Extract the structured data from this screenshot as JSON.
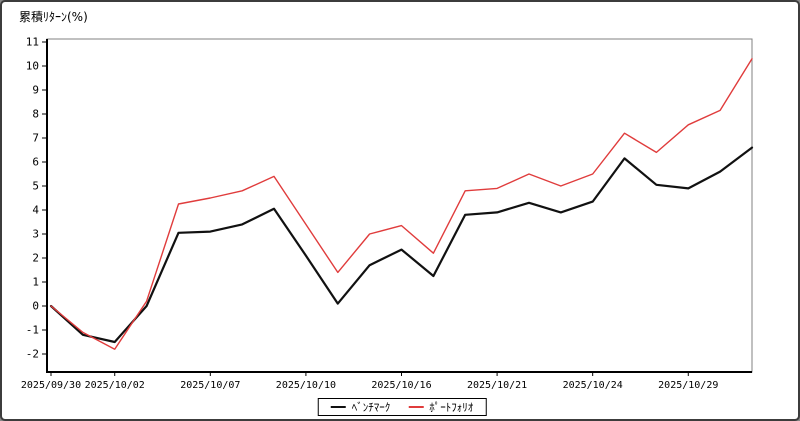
{
  "header": {
    "title": "累積ﾘﾀｰﾝ(%)"
  },
  "legend": {
    "items": [
      {
        "key": "benchmark",
        "label": "ﾍﾞﾝﾁﾏｰｸ",
        "color": "#111111"
      },
      {
        "key": "portfolio",
        "label": "ﾎﾟｰﾄﾌｫﾘｵ",
        "color": "#e03c3c"
      }
    ]
  },
  "colors": {
    "benchmark_line": "#111111",
    "portfolio_line": "#e03c3c",
    "axis": "#000000",
    "plot_border": "#808080",
    "background": "#ffffff"
  },
  "chart_data": {
    "type": "line",
    "title": "累積ﾘﾀｰﾝ(%)",
    "ylabel": "累積ﾘﾀｰﾝ(%)",
    "xlabel": "",
    "grid": false,
    "legend_position": "bottom-center",
    "ylim": [
      -2.75,
      11.2
    ],
    "y_ticks": [
      -2,
      -1,
      0,
      1,
      2,
      3,
      4,
      5,
      6,
      7,
      8,
      9,
      10,
      11
    ],
    "x": [
      "2025/09/30",
      "2025/10/01",
      "2025/10/02",
      "2025/10/03",
      "2025/10/06",
      "2025/10/07",
      "2025/10/08",
      "2025/10/09",
      "2025/10/10",
      "2025/10/14",
      "2025/10/15",
      "2025/10/16",
      "2025/10/17",
      "2025/10/20",
      "2025/10/21",
      "2025/10/22",
      "2025/10/23",
      "2025/10/24",
      "2025/10/27",
      "2025/10/28",
      "2025/10/29",
      "2025/10/30",
      "2025/10/31"
    ],
    "x_tick_labels": [
      {
        "label": "2025/09/30",
        "index": 0
      },
      {
        "label": "2025/10/02",
        "index": 2
      },
      {
        "label": "2025/10/07",
        "index": 5
      },
      {
        "label": "2025/10/10",
        "index": 8
      },
      {
        "label": "2025/10/16",
        "index": 11
      },
      {
        "label": "2025/10/21",
        "index": 14
      },
      {
        "label": "2025/10/24",
        "index": 17
      },
      {
        "label": "2025/10/29",
        "index": 20
      }
    ],
    "series": [
      {
        "name": "benchmark",
        "label": "ﾍﾞﾝﾁﾏｰｸ",
        "color": "#111111",
        "width": 2.2,
        "values": [
          0.0,
          -1.2,
          -1.5,
          0.0,
          3.05,
          3.1,
          3.4,
          4.05,
          2.1,
          0.1,
          1.7,
          2.35,
          1.25,
          3.8,
          3.9,
          4.3,
          3.9,
          4.35,
          6.15,
          5.05,
          4.9,
          5.6,
          6.6
        ]
      },
      {
        "name": "portfolio",
        "label": "ﾎﾟｰﾄﾌｫﾘｵ",
        "color": "#e03c3c",
        "width": 1.4,
        "values": [
          0.0,
          -1.1,
          -1.8,
          0.2,
          4.25,
          4.5,
          4.8,
          5.4,
          3.4,
          1.4,
          3.0,
          3.35,
          2.2,
          4.8,
          4.9,
          5.5,
          5.0,
          5.5,
          7.2,
          6.4,
          7.55,
          8.15,
          10.3
        ]
      }
    ]
  }
}
